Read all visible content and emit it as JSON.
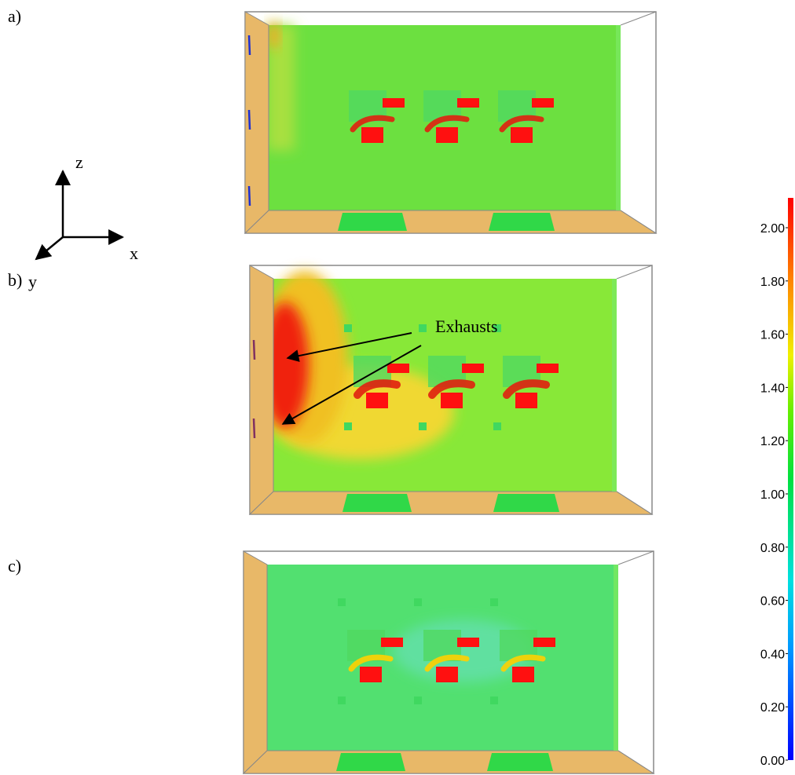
{
  "figure": {
    "panels": [
      {
        "label": "a)"
      },
      {
        "label": "b)",
        "annotation": "Exhausts"
      },
      {
        "label": "c)"
      }
    ],
    "axes": {
      "z": "z",
      "x": "x",
      "y": "y"
    },
    "colorbar": {
      "ticks": [
        {
          "value": 0,
          "label": "0.00"
        },
        {
          "value": 0.2,
          "label": "0.20"
        },
        {
          "value": 0.4,
          "label": "0.40"
        },
        {
          "value": 0.6,
          "label": "0.60"
        },
        {
          "value": 0.8,
          "label": "0.80"
        },
        {
          "value": 1,
          "label": "1.00"
        },
        {
          "value": 1.2,
          "label": "1.20"
        },
        {
          "value": 1.4,
          "label": "1.40"
        },
        {
          "value": 1.6,
          "label": "1.60"
        },
        {
          "value": 1.8,
          "label": "1.80"
        },
        {
          "value": 2,
          "label": "2.00"
        }
      ]
    }
  }
}
